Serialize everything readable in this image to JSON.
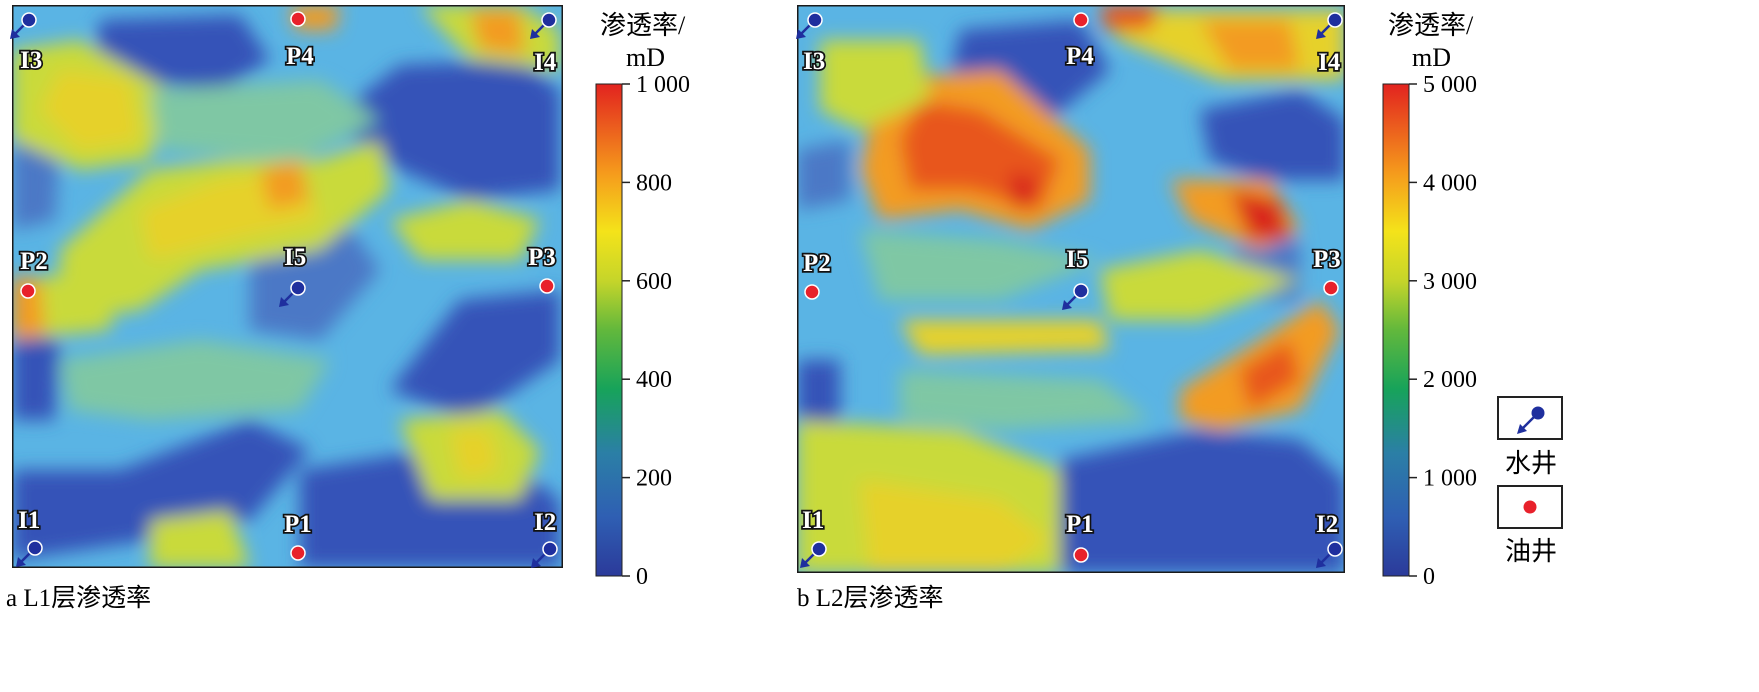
{
  "chart_data": [
    {
      "type": "heatmap",
      "caption": "a L1层渗透率",
      "colorbar": {
        "title_line1": "渗透率/",
        "title_line2": "mD",
        "range": [
          0,
          1000
        ],
        "ticks": [
          "1 000",
          "800",
          "600",
          "400",
          "200",
          "0"
        ]
      },
      "wells": [
        {
          "name": "I3",
          "kind": "water"
        },
        {
          "name": "P4",
          "kind": "oil"
        },
        {
          "name": "I4",
          "kind": "water"
        },
        {
          "name": "P2",
          "kind": "oil"
        },
        {
          "name": "I5",
          "kind": "water"
        },
        {
          "name": "P3",
          "kind": "oil"
        },
        {
          "name": "I1",
          "kind": "water"
        },
        {
          "name": "P1",
          "kind": "oil"
        },
        {
          "name": "I2",
          "kind": "water"
        }
      ]
    },
    {
      "type": "heatmap",
      "caption": "b L2层渗透率",
      "colorbar": {
        "title_line1": "渗透率/",
        "title_line2": "mD",
        "range": [
          0,
          5000
        ],
        "ticks": [
          "5 000",
          "4 000",
          "3 000",
          "2 000",
          "1 000",
          "0"
        ]
      },
      "wells": [
        {
          "name": "I3",
          "kind": "water"
        },
        {
          "name": "P4",
          "kind": "oil"
        },
        {
          "name": "I4",
          "kind": "water"
        },
        {
          "name": "P2",
          "kind": "oil"
        },
        {
          "name": "I5",
          "kind": "water"
        },
        {
          "name": "P3",
          "kind": "oil"
        },
        {
          "name": "I1",
          "kind": "water"
        },
        {
          "name": "P1",
          "kind": "oil"
        },
        {
          "name": "I2",
          "kind": "water"
        }
      ]
    }
  ],
  "legend": {
    "water_well_label": "水井",
    "oil_well_label": "油井",
    "colors": {
      "water": "#1f2f9e",
      "oil": "#e8212b"
    }
  }
}
